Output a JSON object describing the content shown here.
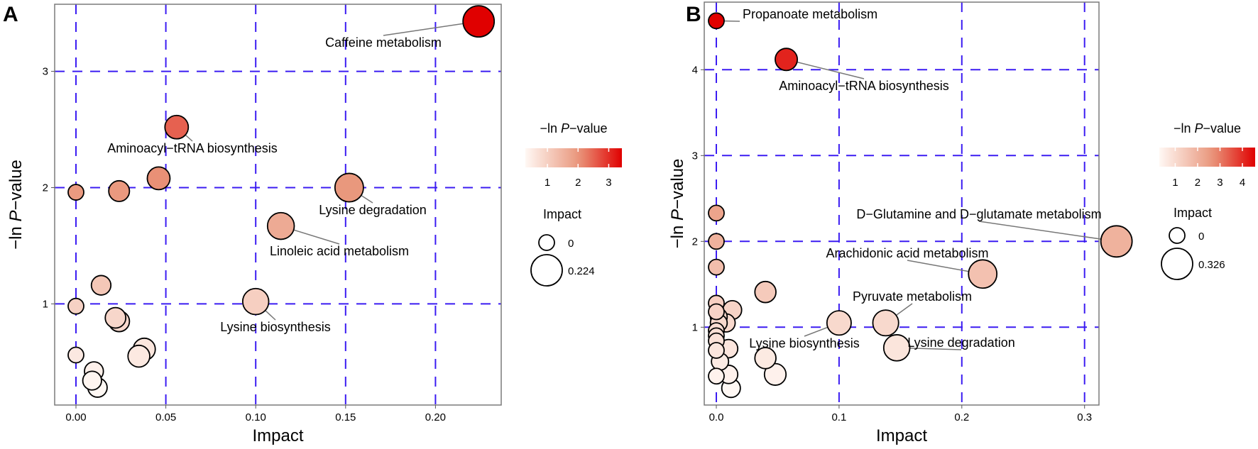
{
  "chart_data": [
    {
      "type": "scatter",
      "panel_label": "A",
      "xlabel": "Impact",
      "ylabel_prefix": "−ln",
      "ylabel_italic": "P",
      "ylabel_suffix": "−value",
      "xlim": [
        -0.012,
        0.237
      ],
      "ylim": [
        0.13,
        3.58
      ],
      "xticks": [
        0.0,
        0.05,
        0.1,
        0.15,
        0.2
      ],
      "xtick_labels": [
        "0.00",
        "0.05",
        "0.10",
        "0.15",
        "0.20"
      ],
      "yticks": [
        1,
        2,
        3
      ],
      "ytick_labels": [
        "1",
        "2",
        "3"
      ],
      "grid": true,
      "color_legend": {
        "title_prefix": "−ln",
        "title_italic": "P",
        "title_suffix": "−value",
        "range": [
          0.28,
          3.43
        ],
        "ticks": [
          "1",
          "2",
          "3"
        ]
      },
      "size_legend": {
        "title": "Impact",
        "labels": [
          "0",
          "0.224"
        ],
        "values": [
          0,
          0.224
        ]
      },
      "points": [
        {
          "x": 0.224,
          "y": 3.43,
          "label": "Caffeine metabolism"
        },
        {
          "x": 0.056,
          "y": 2.52,
          "label": "Aminoacyl−tRNA biosynthesis"
        },
        {
          "x": 0.0,
          "y": 1.96
        },
        {
          "x": 0.024,
          "y": 1.97
        },
        {
          "x": 0.046,
          "y": 2.08
        },
        {
          "x": 0.152,
          "y": 2.0,
          "label": "Lysine degradation"
        },
        {
          "x": 0.114,
          "y": 1.67,
          "label": "Linoleic acid metabolism"
        },
        {
          "x": 0.014,
          "y": 1.16
        },
        {
          "x": 0.0,
          "y": 0.98
        },
        {
          "x": 0.1,
          "y": 1.02,
          "label": "Lysine biosynthesis"
        },
        {
          "x": 0.022,
          "y": 0.88
        },
        {
          "x": 0.024,
          "y": 0.85
        },
        {
          "x": 0.038,
          "y": 0.61
        },
        {
          "x": 0.035,
          "y": 0.55
        },
        {
          "x": 0.0,
          "y": 0.56
        },
        {
          "x": 0.01,
          "y": 0.42
        },
        {
          "x": 0.009,
          "y": 0.34
        },
        {
          "x": 0.012,
          "y": 0.28
        }
      ]
    },
    {
      "type": "scatter",
      "panel_label": "B",
      "xlabel": "Impact",
      "ylabel_prefix": "−ln",
      "ylabel_italic": "P",
      "ylabel_suffix": "−value",
      "xlim": [
        -0.01,
        0.312
      ],
      "ylim": [
        0.15,
        4.8
      ],
      "xticks": [
        0.0,
        0.1,
        0.2,
        0.3
      ],
      "xtick_labels": [
        "0.0",
        "0.1",
        "0.2",
        "0.3"
      ],
      "yticks": [
        1,
        2,
        3,
        4
      ],
      "ytick_labels": [
        "1",
        "2",
        "3",
        "4"
      ],
      "grid": true,
      "color_legend": {
        "title_prefix": "−ln",
        "title_italic": "P",
        "title_suffix": "−value",
        "range": [
          0.29,
          4.57
        ],
        "ticks": [
          "1",
          "2",
          "3",
          "4"
        ]
      },
      "size_legend": {
        "title": "Impact",
        "labels": [
          "0",
          "0.326"
        ],
        "values": [
          0,
          0.326
        ]
      },
      "points": [
        {
          "x": 0.0,
          "y": 4.57,
          "label": "Propanoate metabolism"
        },
        {
          "x": 0.057,
          "y": 4.12,
          "label": "Aminoacyl−tRNA biosynthesis"
        },
        {
          "x": 0.326,
          "y": 2.0,
          "label": "D−Glutamine and D−glutamate metabolism"
        },
        {
          "x": 0.217,
          "y": 1.62,
          "label": "Arachidonic acid metabolism"
        },
        {
          "x": 0.138,
          "y": 1.05,
          "label": "Pyruvate metabolism"
        },
        {
          "x": 0.1,
          "y": 1.05,
          "label": "Lysine biosynthesis"
        },
        {
          "x": 0.147,
          "y": 0.76,
          "label": "Lysine degradation"
        },
        {
          "x": 0.0,
          "y": 2.33
        },
        {
          "x": 0.0,
          "y": 2.0
        },
        {
          "x": 0.0,
          "y": 1.7
        },
        {
          "x": 0.04,
          "y": 1.41
        },
        {
          "x": 0.04,
          "y": 0.64
        },
        {
          "x": 0.048,
          "y": 0.45
        },
        {
          "x": 0.0,
          "y": 1.28
        },
        {
          "x": 0.013,
          "y": 1.2
        },
        {
          "x": 0.0,
          "y": 1.18
        },
        {
          "x": 0.002,
          "y": 1.12
        },
        {
          "x": 0.008,
          "y": 1.05
        },
        {
          "x": 0.002,
          "y": 1.05
        },
        {
          "x": 0.0,
          "y": 0.96
        },
        {
          "x": 0.0,
          "y": 0.9
        },
        {
          "x": 0.0,
          "y": 0.84
        },
        {
          "x": 0.01,
          "y": 0.75
        },
        {
          "x": 0.0,
          "y": 0.73
        },
        {
          "x": 0.003,
          "y": 0.6
        },
        {
          "x": 0.01,
          "y": 0.45
        },
        {
          "x": 0.0,
          "y": 0.43
        },
        {
          "x": 0.012,
          "y": 0.29
        }
      ]
    }
  ],
  "colors": {
    "grid": "#3b1cf2",
    "low": "#fff8f4",
    "mid": "#e9977c",
    "high": "#e00000"
  }
}
